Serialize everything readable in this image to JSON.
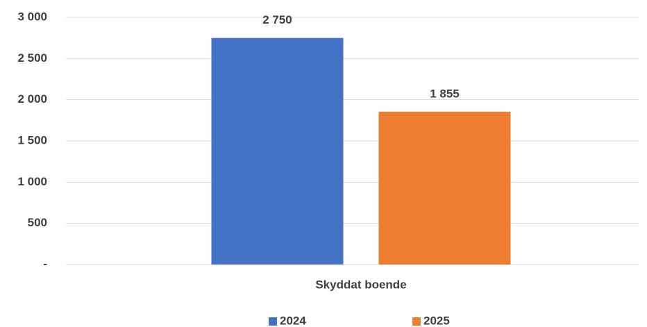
{
  "chart_data": {
    "type": "bar",
    "categories": [
      "Skyddat boende"
    ],
    "series": [
      {
        "name": "2024",
        "color": "#4472c4",
        "values": [
          2750
        ],
        "value_labels": [
          "2 750"
        ]
      },
      {
        "name": "2025",
        "color": "#ed7d31",
        "values": [
          1855
        ],
        "value_labels": [
          "1 855"
        ]
      }
    ],
    "ylim": [
      0,
      3000
    ],
    "yticks": [
      {
        "value": 0,
        "label": "-"
      },
      500,
      {
        "value": 1000,
        "label": "1 000"
      },
      {
        "value": 1500,
        "label": "1 500"
      },
      {
        "value": 2000,
        "label": "2 000"
      },
      {
        "value": 2500,
        "label": "2 500"
      },
      {
        "value": 3000,
        "label": "3 000"
      }
    ],
    "grid": true,
    "legend": "bottom"
  }
}
